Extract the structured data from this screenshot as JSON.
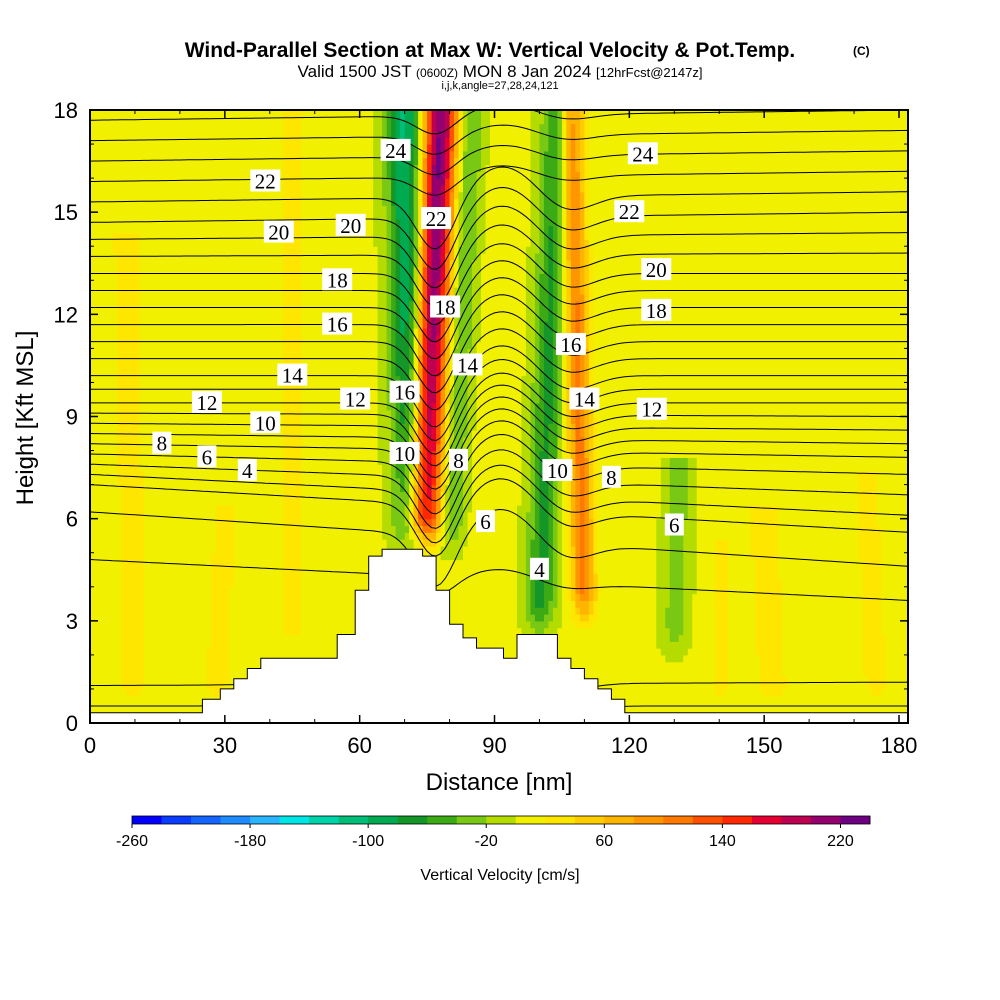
{
  "chart_data": {
    "type": "heatmap",
    "title": "Wind-Parallel Section at Max W: Vertical Velocity & Pot.Temp.",
    "title_mark": "(C)",
    "subtitle_parts": [
      "Valid 1500 JST",
      "(0600Z)",
      "MON 8 Jan 2024",
      "[12hrFcst@2147z]"
    ],
    "subtitle2": "i,j,k,angle=27,28,24,121",
    "xlabel": "Distance [nm]",
    "ylabel": "Height [Kft MSL]",
    "xlim": [
      0,
      182
    ],
    "ylim": [
      0,
      18
    ],
    "x_ticks": [
      0,
      30,
      60,
      90,
      120,
      150,
      180
    ],
    "y_ticks": [
      0,
      3,
      6,
      9,
      12,
      15,
      18
    ],
    "colorbar": {
      "label": "Vertical Velocity [cm/s]",
      "min": -260,
      "max": 240,
      "step": 20,
      "tick_values": [
        -260,
        -180,
        -100,
        -20,
        60,
        140,
        220
      ],
      "tick_labels": [
        "-260",
        "-180",
        "-100",
        "-20",
        "60",
        "140",
        "220"
      ],
      "colors": [
        "#0000ff",
        "#0a3cff",
        "#1464ff",
        "#1e8cff",
        "#28b4ff",
        "#00e6e6",
        "#00d2aa",
        "#00be78",
        "#00aa50",
        "#149628",
        "#3caa14",
        "#78c814",
        "#b4dc00",
        "#f0f000",
        "#ffe600",
        "#ffcd00",
        "#ffb400",
        "#ff9600",
        "#ff7800",
        "#ff5000",
        "#ff2800",
        "#e60032",
        "#be0050",
        "#96006e",
        "#6e0082"
      ]
    },
    "terrain_profile": [
      [
        0,
        0.3
      ],
      [
        25,
        0.3
      ],
      [
        25,
        0.7
      ],
      [
        29,
        0.7
      ],
      [
        29,
        1.0
      ],
      [
        32,
        1.0
      ],
      [
        32,
        1.3
      ],
      [
        35,
        1.3
      ],
      [
        35,
        1.6
      ],
      [
        38,
        1.6
      ],
      [
        38,
        1.9
      ],
      [
        55,
        1.9
      ],
      [
        55,
        2.6
      ],
      [
        59,
        2.6
      ],
      [
        59,
        3.9
      ],
      [
        62,
        3.9
      ],
      [
        62,
        4.9
      ],
      [
        65,
        4.9
      ],
      [
        65,
        5.1
      ],
      [
        74,
        5.1
      ],
      [
        74,
        4.9
      ],
      [
        77,
        4.9
      ],
      [
        77,
        3.9
      ],
      [
        80,
        3.9
      ],
      [
        80,
        2.9
      ],
      [
        83,
        2.9
      ],
      [
        83,
        2.5
      ],
      [
        86,
        2.5
      ],
      [
        86,
        2.2
      ],
      [
        92,
        2.2
      ],
      [
        92,
        1.9
      ],
      [
        95,
        1.9
      ],
      [
        95,
        2.6
      ],
      [
        104,
        2.6
      ],
      [
        104,
        1.9
      ],
      [
        107,
        1.9
      ],
      [
        107,
        1.6
      ],
      [
        110,
        1.6
      ],
      [
        110,
        1.3
      ],
      [
        113,
        1.3
      ],
      [
        113,
        1.0
      ],
      [
        116,
        1.0
      ],
      [
        116,
        0.7
      ],
      [
        119,
        0.7
      ],
      [
        119,
        0.3
      ],
      [
        182,
        0.3
      ]
    ],
    "isentrope_series": [
      {
        "name": "4",
        "label_at": [
          [
            35,
            7.4
          ],
          [
            100,
            4.5
          ]
        ]
      },
      {
        "name": "6",
        "label_at": [
          [
            26,
            7.8
          ],
          [
            88,
            5.9
          ],
          [
            130,
            5.8
          ]
        ]
      },
      {
        "name": "8",
        "label_at": [
          [
            16,
            8.2
          ],
          [
            82,
            7.7
          ],
          [
            116,
            7.2
          ]
        ]
      },
      {
        "name": "10",
        "label_at": [
          [
            39,
            8.8
          ],
          [
            70,
            7.9
          ],
          [
            104,
            7.4
          ]
        ]
      },
      {
        "name": "12",
        "label_at": [
          [
            26,
            9.4
          ],
          [
            59,
            9.5
          ],
          [
            125,
            9.2
          ]
        ]
      },
      {
        "name": "14",
        "label_at": [
          [
            45,
            10.2
          ],
          [
            84,
            10.5
          ],
          [
            110,
            9.5
          ]
        ]
      },
      {
        "name": "16",
        "label_at": [
          [
            55,
            11.7
          ],
          [
            70,
            9.7
          ],
          [
            107,
            11.1
          ]
        ]
      },
      {
        "name": "18",
        "label_at": [
          [
            55,
            13.0
          ],
          [
            79,
            12.2
          ],
          [
            126,
            12.1
          ]
        ]
      },
      {
        "name": "20",
        "label_at": [
          [
            42,
            14.4
          ],
          [
            58,
            14.6
          ],
          [
            126,
            13.3
          ]
        ]
      },
      {
        "name": "22",
        "label_at": [
          [
            39,
            15.9
          ],
          [
            77,
            14.8
          ],
          [
            120,
            15.0
          ]
        ]
      },
      {
        "name": "24",
        "label_at": [
          [
            68,
            16.8
          ],
          [
            123,
            16.7
          ]
        ]
      }
    ],
    "isentrope_levels_kft": [
      {
        "left": 0.5,
        "right": 0.5
      },
      {
        "left": 1.1,
        "right": 1.2
      },
      {
        "left": 4.8,
        "right": 3.6
      },
      {
        "left": 6.2,
        "right": 4.6
      },
      {
        "left": 7.0,
        "right": 5.6
      },
      {
        "left": 7.3,
        "right": 6.1
      },
      {
        "left": 7.6,
        "right": 6.7
      },
      {
        "left": 7.9,
        "right": 7.3
      },
      {
        "left": 8.2,
        "right": 7.8
      },
      {
        "left": 8.5,
        "right": 8.2
      },
      {
        "left": 8.8,
        "right": 8.6
      },
      {
        "left": 9.1,
        "right": 9.0
      },
      {
        "left": 9.4,
        "right": 9.4
      },
      {
        "left": 9.8,
        "right": 9.8
      },
      {
        "left": 10.2,
        "right": 10.2
      },
      {
        "left": 10.7,
        "right": 10.7
      },
      {
        "left": 11.2,
        "right": 11.2
      },
      {
        "left": 11.7,
        "right": 11.7
      },
      {
        "left": 12.2,
        "right": 12.2
      },
      {
        "left": 12.7,
        "right": 12.7
      },
      {
        "left": 13.2,
        "right": 13.2
      },
      {
        "left": 13.7,
        "right": 13.8
      },
      {
        "left": 14.2,
        "right": 14.4
      },
      {
        "left": 14.7,
        "right": 15.0
      },
      {
        "left": 15.3,
        "right": 15.6
      },
      {
        "left": 15.9,
        "right": 16.2
      },
      {
        "left": 16.5,
        "right": 16.8
      },
      {
        "left": 17.1,
        "right": 17.4
      },
      {
        "left": 17.7,
        "right": 18.0
      }
    ],
    "vertical_velocity_features": [
      {
        "kind": "plume",
        "x_top": 78,
        "x_bottom": 74,
        "y_from": 5.2,
        "y_to": 18,
        "width": 5.5,
        "peak": 220
      },
      {
        "kind": "plume",
        "x_top": 70,
        "x_bottom": 72,
        "y_from": 5.0,
        "y_to": 18,
        "width": 6.0,
        "peak": -110
      },
      {
        "kind": "plume",
        "x_top": 85,
        "x_bottom": 80,
        "y_from": 5.0,
        "y_to": 18,
        "width": 4.0,
        "peak": -50
      },
      {
        "kind": "plume",
        "x_top": 104,
        "x_bottom": 100,
        "y_from": 2.6,
        "y_to": 18,
        "width": 5.0,
        "peak": -70
      },
      {
        "kind": "plume",
        "x_top": 107,
        "x_bottom": 110,
        "y_from": 3.0,
        "y_to": 18,
        "width": 4.0,
        "peak": 100
      },
      {
        "kind": "plume",
        "x_top": 131,
        "x_bottom": 130,
        "y_from": 2.0,
        "y_to": 7.5,
        "width": 4.5,
        "peak": -35
      },
      {
        "kind": "plume",
        "x_top": 8,
        "x_bottom": 10,
        "y_from": 0.3,
        "y_to": 14,
        "width": 7,
        "peak": 20
      },
      {
        "kind": "plume",
        "x_top": 30,
        "x_bottom": 28,
        "y_from": 0.3,
        "y_to": 6,
        "width": 6,
        "peak": 20
      },
      {
        "kind": "plume",
        "x_top": 45,
        "x_bottom": 45,
        "y_from": 2.0,
        "y_to": 18,
        "width": 5,
        "peak": 20
      },
      {
        "kind": "plume",
        "x_top": 140,
        "x_bottom": 140,
        "y_from": 0.3,
        "y_to": 5,
        "width": 4,
        "peak": 20
      },
      {
        "kind": "plume",
        "x_top": 150,
        "x_bottom": 152,
        "y_from": 0.3,
        "y_to": 6,
        "width": 8,
        "peak": 20
      },
      {
        "kind": "plume",
        "x_top": 173,
        "x_bottom": 175,
        "y_from": 0.3,
        "y_to": 7,
        "width": 6,
        "peak": 20
      }
    ]
  }
}
